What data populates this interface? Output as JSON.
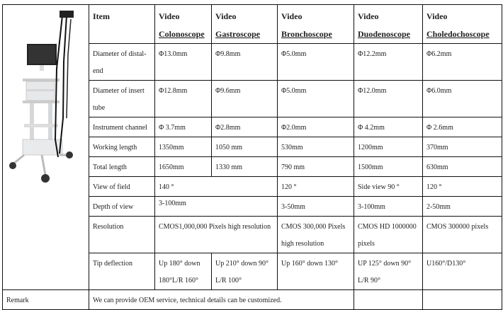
{
  "header": {
    "item": "Item",
    "columns": [
      {
        "line1": "Video",
        "line2": "Colonoscope"
      },
      {
        "line1": "Video",
        "line2": "Gastroscope"
      },
      {
        "line1": "Video",
        "line2": "Bronchoscope"
      },
      {
        "line1": "Video",
        "line2": "Duodenoscope"
      },
      {
        "line1": "Video",
        "line2": "Choledochoscope"
      }
    ]
  },
  "rows": {
    "distal": {
      "label": "Diameter of distal-end",
      "values": [
        "Φ13.0mm",
        "Φ9.8mm",
        "Φ5.0mm",
        "Φ12.2mm",
        "Φ6.2mm"
      ]
    },
    "insert": {
      "label": "Diameter of insert tube",
      "values": [
        "Φ12.8mm",
        "Φ9.6mm",
        "Φ5.0mm",
        "Φ12.0mm",
        "Φ6.0mm"
      ]
    },
    "channel": {
      "label": "Instrument channel",
      "values": [
        "Φ 3.7mm",
        "Φ2.8mm",
        "Φ2.0mm",
        "Φ 4.2mm",
        "Φ 2.6mm"
      ]
    },
    "working": {
      "label": "Working length",
      "values": [
        "1350mm",
        "1050 mm",
        "530mm",
        "1200mm",
        "370mm"
      ]
    },
    "total": {
      "label": "Total length",
      "values": [
        "1650mm",
        "1330 mm",
        "790 mm",
        "1500mm",
        "630mm"
      ]
    },
    "view": {
      "label": "View of field",
      "values": [
        "140 °",
        "120 °",
        "Side view 90 °",
        "120 °"
      ]
    },
    "depth": {
      "label": "Depth of view",
      "values": [
        "3-100mm",
        "3-50mm",
        "3-100mm",
        "2-50mm"
      ]
    },
    "resolution": {
      "label": "Resolution",
      "values": [
        "CMOS1,000,000 Pixels high resolution",
        "CMOS 300,000 Pixels high resolution",
        "CMOS HD 1000000 pixels",
        "CMOS 300000 pixels"
      ]
    },
    "tip": {
      "label": "Tip deflection",
      "values": [
        "Up 180° down 180°L/R 160°",
        "Up 210° down 90° L/R 100°",
        "Up 160° down 130°",
        "UP 125° down 90° L/R 90°",
        "U160°/D130°"
      ]
    }
  },
  "remark": {
    "label": "Remark",
    "text": "We can provide OEM service, technical details can be customized."
  }
}
